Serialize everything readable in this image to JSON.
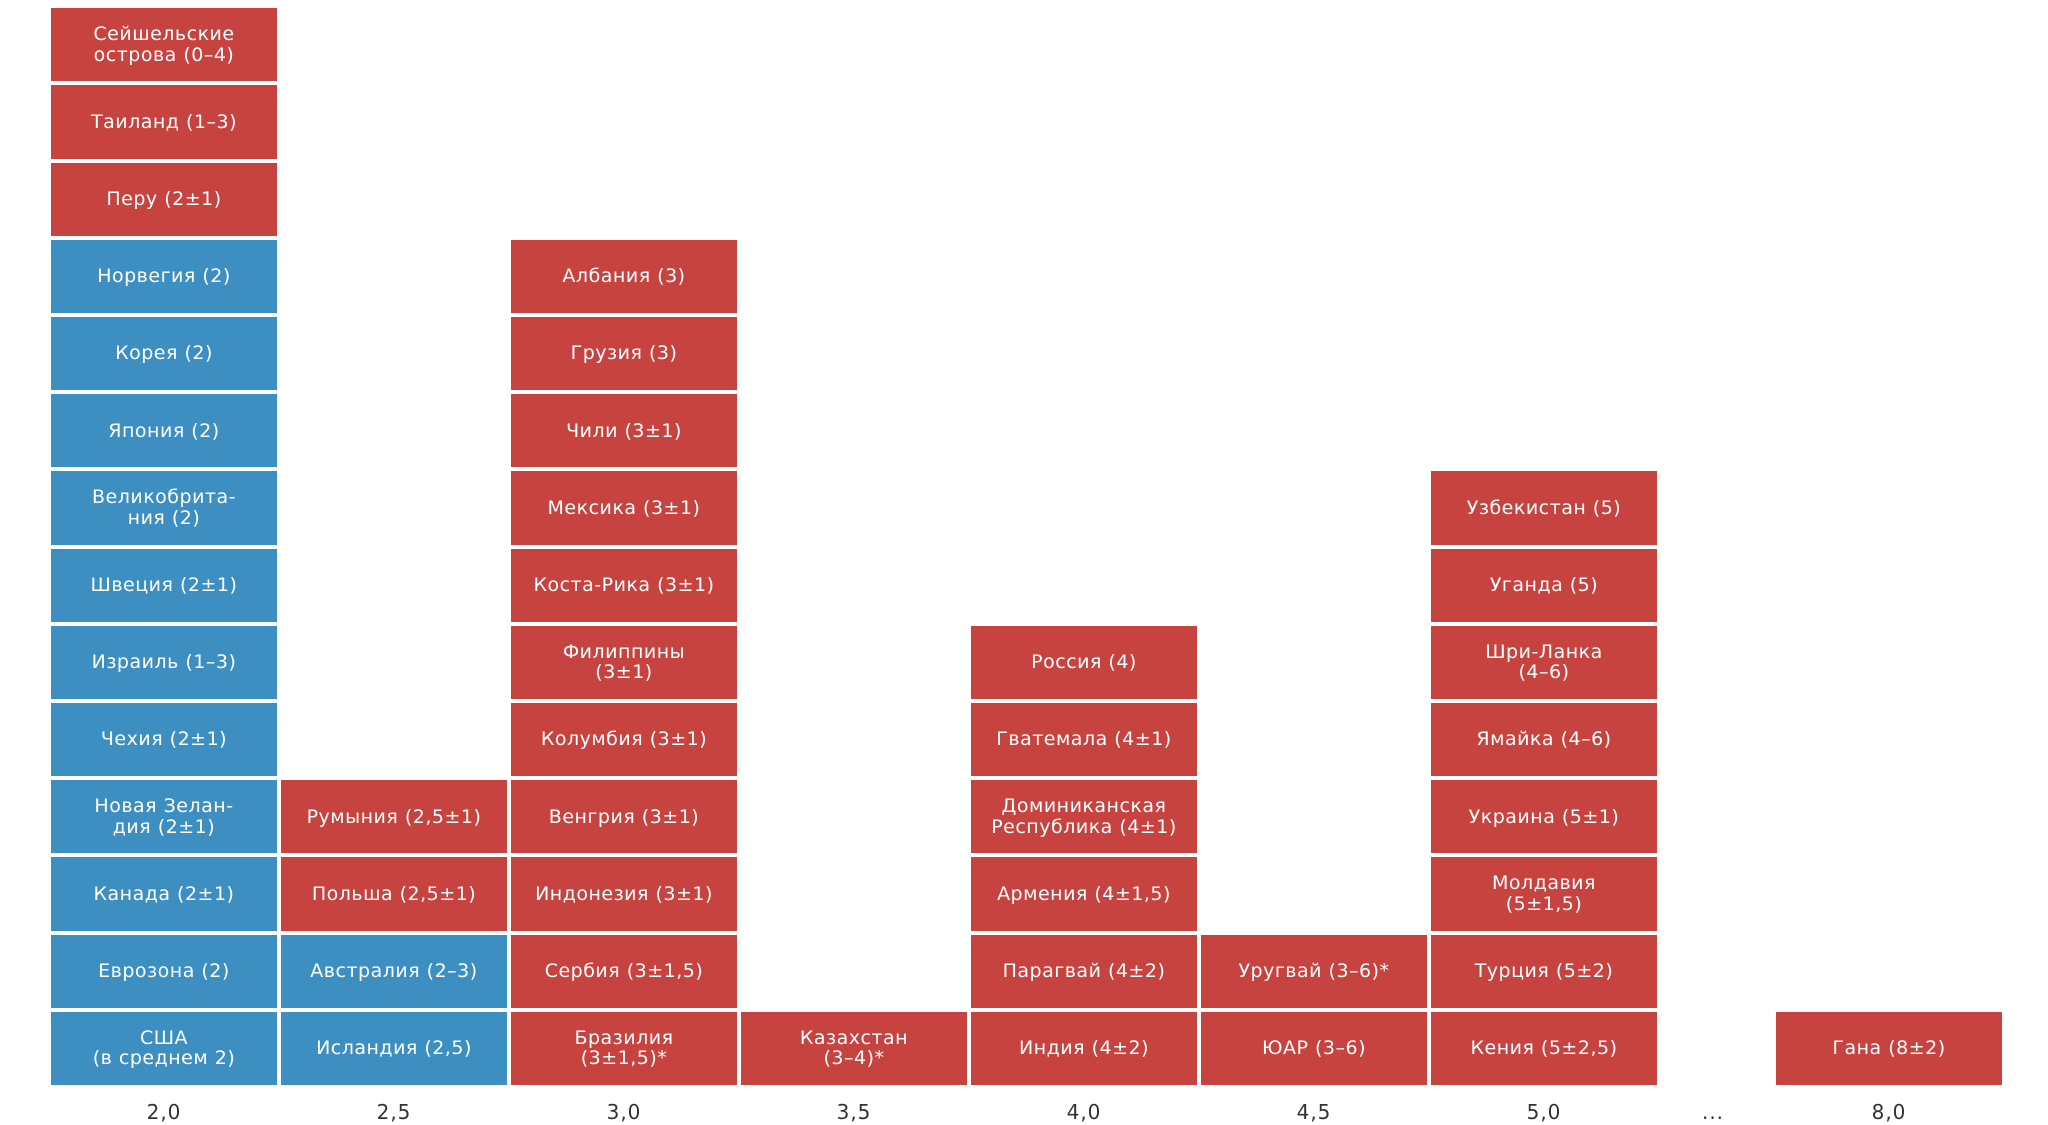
{
  "chart_data": {
    "type": "table",
    "title": "",
    "categories": [
      "2,0",
      "2,5",
      "3,0",
      "3,5",
      "4,0",
      "4,5",
      "5,0",
      "...",
      "8,0"
    ],
    "colors": {
      "developed": "#3d8fc1",
      "emerging": "#c6433f"
    },
    "columns": [
      {
        "x": "2,0",
        "items": [
          {
            "label": "США\n(в среднем 2)",
            "group": "developed"
          },
          {
            "label": "Еврозона (2)",
            "group": "developed"
          },
          {
            "label": "Канада (2±1)",
            "group": "developed"
          },
          {
            "label": "Новая Зелан-\nдия (2±1)",
            "group": "developed"
          },
          {
            "label": "Чехия (2±1)",
            "group": "developed"
          },
          {
            "label": "Израиль (1–3)",
            "group": "developed"
          },
          {
            "label": "Швеция (2±1)",
            "group": "developed"
          },
          {
            "label": "Великобрита-\nния (2)",
            "group": "developed"
          },
          {
            "label": "Япония (2)",
            "group": "developed"
          },
          {
            "label": "Корея (2)",
            "group": "developed"
          },
          {
            "label": "Норвегия (2)",
            "group": "developed"
          },
          {
            "label": "Перу (2±1)",
            "group": "emerging"
          },
          {
            "label": "Таиланд (1–3)",
            "group": "emerging"
          },
          {
            "label": "Сейшельские\nострова (0–4)",
            "group": "emerging"
          }
        ]
      },
      {
        "x": "2,5",
        "items": [
          {
            "label": "Исландия (2,5)",
            "group": "developed"
          },
          {
            "label": "Австралия (2–3)",
            "group": "developed"
          },
          {
            "label": "Польша (2,5±1)",
            "group": "emerging"
          },
          {
            "label": "Румыния (2,5±1)",
            "group": "emerging"
          }
        ]
      },
      {
        "x": "3,0",
        "items": [
          {
            "label": "Бразилия\n(3±1,5)*",
            "group": "emerging"
          },
          {
            "label": "Сербия (3±1,5)",
            "group": "emerging"
          },
          {
            "label": "Индонезия (3±1)",
            "group": "emerging"
          },
          {
            "label": "Венгрия (3±1)",
            "group": "emerging"
          },
          {
            "label": "Колумбия (3±1)",
            "group": "emerging"
          },
          {
            "label": "Филиппины\n(3±1)",
            "group": "emerging"
          },
          {
            "label": "Коста-Рика (3±1)",
            "group": "emerging"
          },
          {
            "label": "Мексика (3±1)",
            "group": "emerging"
          },
          {
            "label": "Чили (3±1)",
            "group": "emerging"
          },
          {
            "label": "Грузия (3)",
            "group": "emerging"
          },
          {
            "label": "Албания (3)",
            "group": "emerging"
          }
        ]
      },
      {
        "x": "3,5",
        "items": [
          {
            "label": "Казахстан\n(3–4)*",
            "group": "emerging"
          }
        ]
      },
      {
        "x": "4,0",
        "items": [
          {
            "label": "Индия (4±2)",
            "group": "emerging"
          },
          {
            "label": "Парагвай (4±2)",
            "group": "emerging"
          },
          {
            "label": "Армения (4±1,5)",
            "group": "emerging"
          },
          {
            "label": "Доминиканская\nРеспублика (4±1)",
            "group": "emerging"
          },
          {
            "label": "Гватемала (4±1)",
            "group": "emerging"
          },
          {
            "label": "Россия (4)",
            "group": "emerging"
          }
        ]
      },
      {
        "x": "4,5",
        "items": [
          {
            "label": "ЮАР (3–6)",
            "group": "emerging"
          },
          {
            "label": "Уругвай (3–6)*",
            "group": "emerging"
          }
        ]
      },
      {
        "x": "5,0",
        "items": [
          {
            "label": "Кения (5±2,5)",
            "group": "emerging"
          },
          {
            "label": "Турция (5±2)",
            "group": "emerging"
          },
          {
            "label": "Молдавия\n(5±1,5)",
            "group": "emerging"
          },
          {
            "label": "Украина (5±1)",
            "group": "emerging"
          },
          {
            "label": "Ямайка (4–6)",
            "group": "emerging"
          },
          {
            "label": "Шри-Ланка\n(4–6)",
            "group": "emerging"
          },
          {
            "label": "Уганда (5)",
            "group": "emerging"
          },
          {
            "label": "Узбекистан (5)",
            "group": "emerging"
          }
        ]
      },
      {
        "x": "...",
        "items": []
      },
      {
        "x": "8,0",
        "items": [
          {
            "label": "Гана (8±2)",
            "group": "emerging"
          }
        ]
      }
    ]
  }
}
